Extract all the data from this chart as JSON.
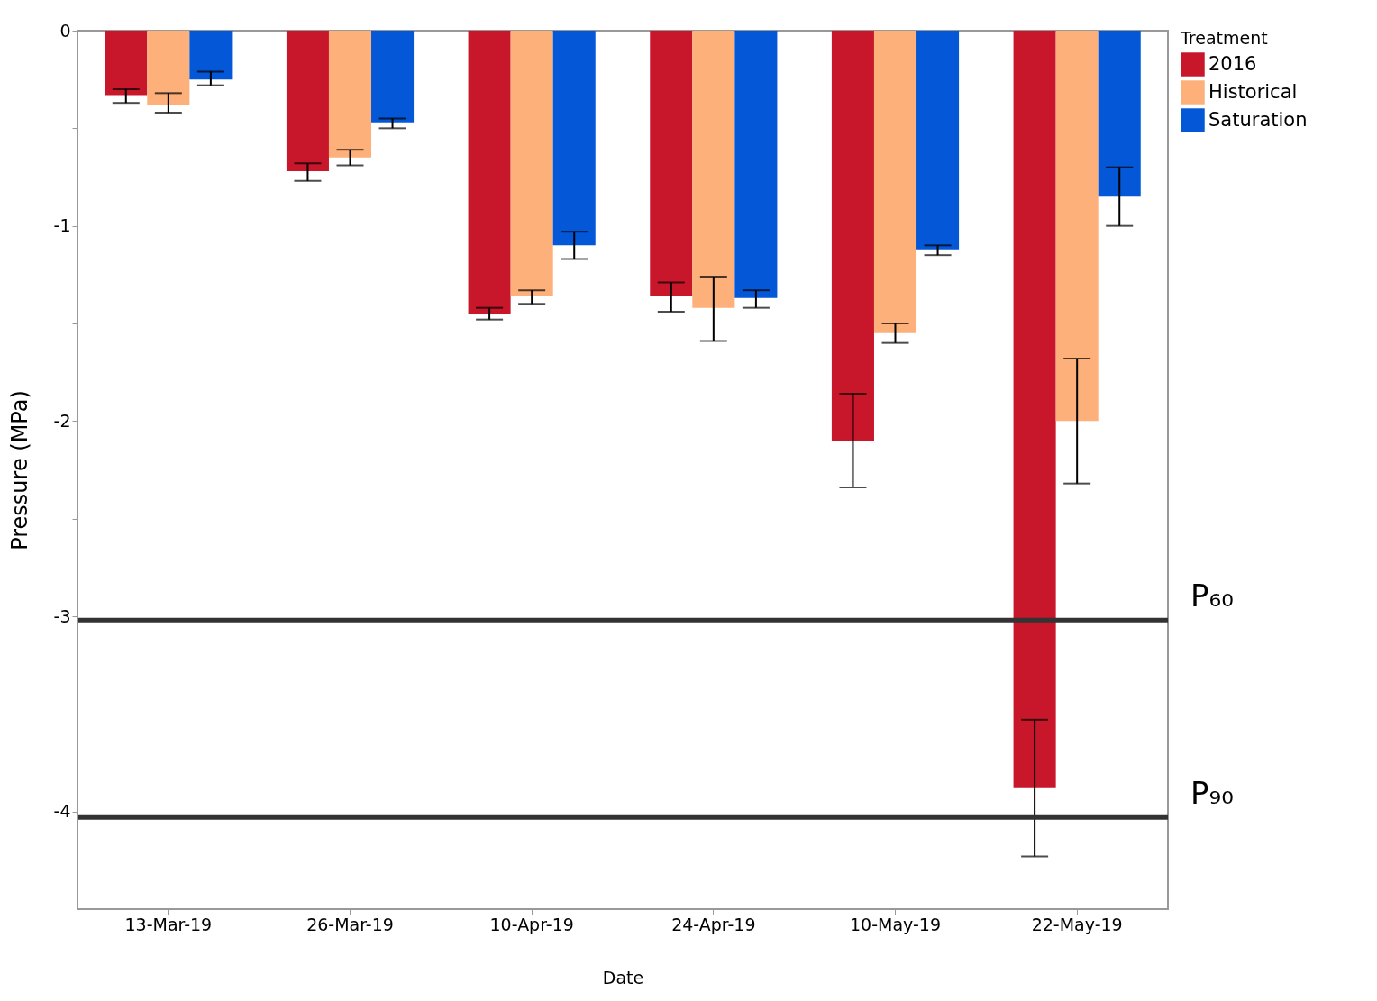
{
  "chart_data": {
    "type": "bar",
    "xlabel": "Date",
    "ylabel": "Pressure (MPa)",
    "legend_title": "Treatment",
    "legend": "top right",
    "grid": false,
    "categories": [
      "13-Mar-19",
      "26-Mar-19",
      "10-Apr-19",
      "24-Apr-19",
      "10-May-19",
      "22-May-19"
    ],
    "ylim": [
      -4.5,
      0
    ],
    "yticks": [
      0,
      {
        "value": -0.5,
        "label": null
      },
      -1,
      {
        "value": -1.5,
        "label": null
      },
      -2,
      {
        "value": -2.5,
        "label": null
      },
      -3,
      {
        "value": -3.5,
        "label": null
      },
      -4
    ],
    "series": [
      {
        "name": "2016",
        "color": "#c8172a",
        "values": [
          -0.33,
          -0.72,
          -1.45,
          -1.36,
          -2.1,
          -3.88
        ],
        "errors": [
          [
            -0.37,
            -0.3
          ],
          [
            -0.77,
            -0.68
          ],
          [
            -1.48,
            -1.42
          ],
          [
            -1.44,
            -1.29
          ],
          [
            -2.34,
            -1.86
          ],
          [
            -4.23,
            -3.53
          ]
        ]
      },
      {
        "name": "Historical",
        "color": "#fdb07a",
        "values": [
          -0.38,
          -0.65,
          -1.36,
          -1.42,
          -1.55,
          -2.0
        ],
        "errors": [
          [
            -0.42,
            -0.32
          ],
          [
            -0.69,
            -0.61
          ],
          [
            -1.4,
            -1.33
          ],
          [
            -1.59,
            -1.26
          ],
          [
            -1.6,
            -1.5
          ],
          [
            -2.32,
            -1.68
          ]
        ]
      },
      {
        "name": "Saturation",
        "color": "#0457d6",
        "values": [
          -0.25,
          -0.47,
          -1.1,
          -1.37,
          -1.12,
          -0.85
        ],
        "errors": [
          [
            -0.28,
            -0.21
          ],
          [
            -0.5,
            -0.45
          ],
          [
            -1.17,
            -1.03
          ],
          [
            -1.42,
            -1.33
          ],
          [
            -1.15,
            -1.1
          ],
          [
            -1.0,
            -0.7
          ]
        ]
      }
    ],
    "ref_lines": [
      {
        "axis": "y",
        "value": -3.02,
        "label": "P₆₀",
        "color": "#333333"
      },
      {
        "axis": "y",
        "value": -4.03,
        "label": "P₉₀",
        "color": "#333333"
      }
    ]
  }
}
